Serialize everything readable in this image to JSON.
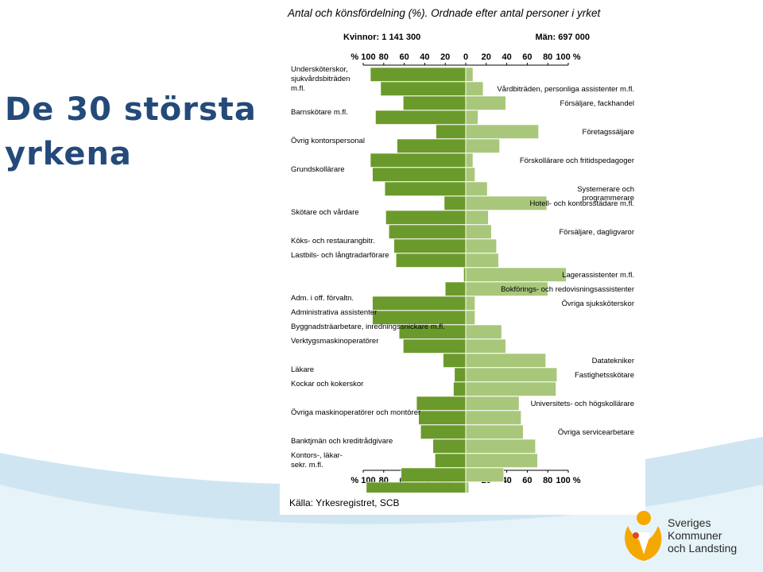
{
  "slide": {
    "title_line1": "De 30 största",
    "title_line2": "yrkena",
    "subtitle": "Antal och könsfördelning (%). Ordnade efter antal personer i yrket",
    "source": "Källa: Yrkesregistret, SCB",
    "logo_text": [
      "Sveriges",
      "Kommuner",
      "och Landsting"
    ]
  },
  "colors": {
    "women": "#6b9a2c",
    "men": "#a9c77a",
    "title": "#244a7a",
    "logo": "#f5a800"
  },
  "chart_data": {
    "type": "bar",
    "orientation": "horizontal-diverging",
    "header_women": "Kvinnor: 1 141 300",
    "header_men": "Män: 697 000",
    "ticks_left": [
      "% 100",
      "80",
      "60",
      "40",
      "20"
    ],
    "ticks_right": [
      "0",
      "20",
      "40",
      "60",
      "80",
      "100 %"
    ],
    "xlim": [
      -100,
      100
    ],
    "series": [
      {
        "name": "Kvinnor",
        "values": [
          93,
          83,
          61,
          88,
          29,
          67,
          93,
          91,
          79,
          21,
          78,
          75,
          70,
          68,
          2,
          20,
          91,
          91,
          65,
          61,
          22,
          11,
          12,
          48,
          46,
          44,
          32,
          30,
          63,
          97
        ]
      },
      {
        "name": "Män",
        "values": [
          7,
          17,
          39,
          12,
          71,
          33,
          7,
          9,
          21,
          79,
          22,
          25,
          30,
          32,
          98,
          80,
          9,
          9,
          35,
          39,
          78,
          89,
          88,
          52,
          54,
          56,
          68,
          70,
          37,
          3
        ]
      }
    ],
    "labels_left": [
      {
        "text": "Undersköterskor,",
        "row": 0
      },
      {
        "text": "sjukvårdsbiträden",
        "row": 0
      },
      {
        "text": "m.fl.",
        "row": 0
      },
      {
        "text": "Barnskötare m.fl.",
        "row": 3
      },
      {
        "text": "Övrig kontorspersonal",
        "row": 5
      },
      {
        "text": "Grundskollärare",
        "row": 7
      },
      {
        "text": "Skötare och vårdare",
        "row": 10
      },
      {
        "text": "Köks- och restaurangbitr.",
        "row": 12
      },
      {
        "text": "Lastbils- och långtradarförare",
        "row": 13
      },
      {
        "text": "Adm. i off. förvaltn.",
        "row": 16
      },
      {
        "text": "Administrativa assistenter",
        "row": 17
      },
      {
        "text": "Byggnadsträarbetare, inredningssnickare m.fl.",
        "row": 18
      },
      {
        "text": "Verktygsmaskinoperatörer",
        "row": 19
      },
      {
        "text": "Läkare",
        "row": 21
      },
      {
        "text": "Kockar och kokerskor",
        "row": 22
      },
      {
        "text": "Övriga maskinoperatörer och montörer",
        "row": 24
      },
      {
        "text": "Banktjmän och kreditrådgivare",
        "row": 26
      },
      {
        "text": "Kontors-, läkar-",
        "row": 27
      },
      {
        "text": "sekr. m.fl.",
        "row": 27
      }
    ],
    "labels_right": [
      {
        "text": "Vårdbiträden, personliga assistenter m.fl.",
        "row": 1
      },
      {
        "text": "Försäljare, fackhandel",
        "row": 2
      },
      {
        "text": "Företagssäljare",
        "row": 4
      },
      {
        "text": "Förskollärare och fritidspedagoger",
        "row": 6
      },
      {
        "text": "Systemerare och",
        "row": 8
      },
      {
        "text": "programmerare",
        "row": 8
      },
      {
        "text": "Hotell- och kontorsstädare m.fl.",
        "row": 9
      },
      {
        "text": "Försäljare, dagligvaror",
        "row": 11
      },
      {
        "text": "Lagerassistenter m.fl.",
        "row": 14
      },
      {
        "text": "Bokförings- och redovisningsassistenter",
        "row": 15
      },
      {
        "text": "Övriga sjuksköterskor",
        "row": 16
      },
      {
        "text": "Datatekniker",
        "row": 20
      },
      {
        "text": "Fastighetsskötare",
        "row": 21
      },
      {
        "text": "Universitets- och högskollärare",
        "row": 23
      },
      {
        "text": "Övriga servicearbetare",
        "row": 25
      }
    ],
    "grid": false
  }
}
